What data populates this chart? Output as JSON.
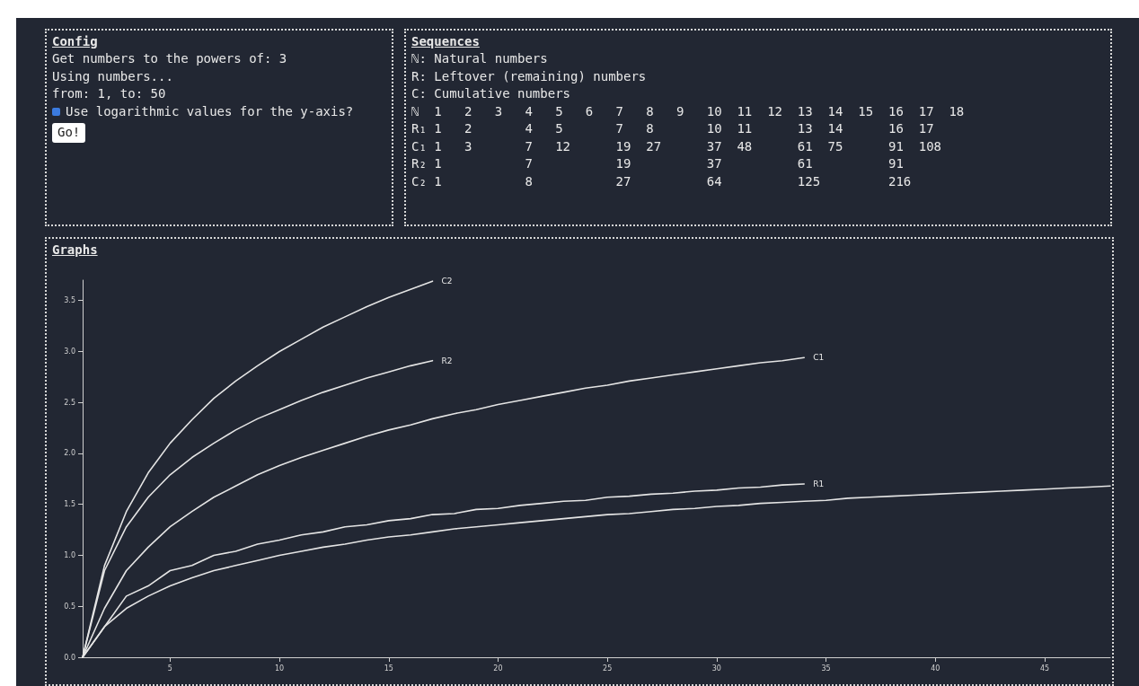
{
  "chart_data": [
    {
      "type": "other",
      "title": "Config",
      "annotations": [
        "Get numbers to the powers of: 3",
        "Using numbers...",
        "from: 1, to: 50",
        "Use logarithmic values for the y-axis?",
        "Go!"
      ]
    },
    {
      "type": "other",
      "title": "Sequences",
      "annotations": [
        "ℕ: Natural numbers",
        "R: Leftover (remaining) numbers",
        "C: Cumulative numbers",
        "ℕ  1   2   3   4   5   6   7   8   9   10  11  12  13  14  15  16  17  18",
        "R₁ 1   2       4   5       7   8       10  11      13  14      16  17",
        "C₁ 1   3       7   12      19  27      37  48      61  75      91  108",
        "R₂ 1           7           19          37          61          91",
        "C₂ 1           8           27          64          125         216"
      ]
    },
    {
      "type": "line",
      "title": "Graphs",
      "xlim": [
        1,
        48
      ],
      "xticks": [
        5,
        10,
        15,
        20,
        25,
        30,
        35,
        40,
        45
      ],
      "ylim": [
        0,
        3.7
      ],
      "yticks": [
        {
          "value": 0,
          "label": "0.0"
        },
        {
          "value": 0.5,
          "label": "0.5"
        },
        {
          "value": 1,
          "label": "1.0"
        },
        {
          "value": 1.5,
          "label": "1.5"
        },
        {
          "value": 2,
          "label": "2.0"
        },
        {
          "value": 2.5,
          "label": "2.5"
        },
        {
          "value": 3,
          "label": "3.0"
        },
        {
          "value": 3.5,
          "label": "3.5"
        }
      ],
      "marker": "none",
      "line_style": "solid",
      "grid": false,
      "legend": false,
      "series": [
        {
          "color": "#e4e4e4",
          "x": [
            1,
            2,
            3,
            4,
            5,
            6,
            7,
            8,
            9,
            10,
            11,
            12,
            13,
            14,
            15,
            16,
            17,
            18,
            19,
            20,
            21,
            22,
            23,
            24,
            25,
            26,
            27,
            28,
            29,
            30,
            31,
            32,
            33,
            34,
            35,
            36,
            37,
            38,
            39,
            40,
            41,
            42,
            43,
            44,
            45,
            46,
            47,
            48
          ],
          "values": [
            0,
            0.3,
            0.48,
            0.6,
            0.7,
            0.78,
            0.85,
            0.9,
            0.95,
            1.0,
            1.04,
            1.08,
            1.11,
            1.15,
            1.18,
            1.2,
            1.23,
            1.26,
            1.28,
            1.3,
            1.32,
            1.34,
            1.36,
            1.38,
            1.4,
            1.41,
            1.43,
            1.45,
            1.46,
            1.48,
            1.49,
            1.51,
            1.52,
            1.53,
            1.54,
            1.56,
            1.57,
            1.58,
            1.59,
            1.6,
            1.61,
            1.62,
            1.63,
            1.64,
            1.65,
            1.66,
            1.67,
            1.68
          ]
        },
        {
          "name": "R1",
          "color": "#e4e4e4",
          "x": [
            1,
            2,
            3,
            4,
            5,
            6,
            7,
            8,
            9,
            10,
            11,
            12,
            13,
            14,
            15,
            16,
            17,
            18,
            19,
            20,
            21,
            22,
            23,
            24,
            25,
            26,
            27,
            28,
            29,
            30,
            31,
            32,
            33,
            34
          ],
          "values": [
            0,
            0.3,
            0.6,
            0.7,
            0.85,
            0.9,
            1.0,
            1.04,
            1.11,
            1.15,
            1.2,
            1.23,
            1.28,
            1.3,
            1.34,
            1.36,
            1.4,
            1.41,
            1.45,
            1.46,
            1.49,
            1.51,
            1.53,
            1.54,
            1.57,
            1.58,
            1.6,
            1.61,
            1.63,
            1.64,
            1.66,
            1.67,
            1.69,
            1.7
          ]
        },
        {
          "name": "C1",
          "color": "#e4e4e4",
          "x": [
            1,
            2,
            3,
            4,
            5,
            6,
            7,
            8,
            9,
            10,
            11,
            12,
            13,
            14,
            15,
            16,
            17,
            18,
            19,
            20,
            21,
            22,
            23,
            24,
            25,
            26,
            27,
            28,
            29,
            30,
            31,
            32,
            33,
            34
          ],
          "values": [
            0,
            0.48,
            0.85,
            1.08,
            1.28,
            1.43,
            1.57,
            1.68,
            1.79,
            1.88,
            1.96,
            2.03,
            2.1,
            2.17,
            2.23,
            2.28,
            2.34,
            2.39,
            2.43,
            2.48,
            2.52,
            2.56,
            2.6,
            2.64,
            2.67,
            2.71,
            2.74,
            2.77,
            2.8,
            2.83,
            2.86,
            2.89,
            2.91,
            2.94
          ]
        },
        {
          "name": "R2",
          "color": "#e4e4e4",
          "x": [
            1,
            2,
            3,
            4,
            5,
            6,
            7,
            8,
            9,
            10,
            11,
            12,
            13,
            14,
            15,
            16,
            17
          ],
          "values": [
            0,
            0.85,
            1.28,
            1.57,
            1.79,
            1.96,
            2.1,
            2.23,
            2.34,
            2.43,
            2.52,
            2.6,
            2.67,
            2.74,
            2.8,
            2.86,
            2.91
          ]
        },
        {
          "name": "C2",
          "color": "#e4e4e4",
          "x": [
            1,
            2,
            3,
            4,
            5,
            6,
            7,
            8,
            9,
            10,
            11,
            12,
            13,
            14,
            15,
            16,
            17
          ],
          "values": [
            0,
            0.9,
            1.43,
            1.81,
            2.1,
            2.33,
            2.54,
            2.71,
            2.86,
            3.0,
            3.12,
            3.24,
            3.34,
            3.44,
            3.53,
            3.61,
            3.69
          ]
        }
      ]
    }
  ]
}
